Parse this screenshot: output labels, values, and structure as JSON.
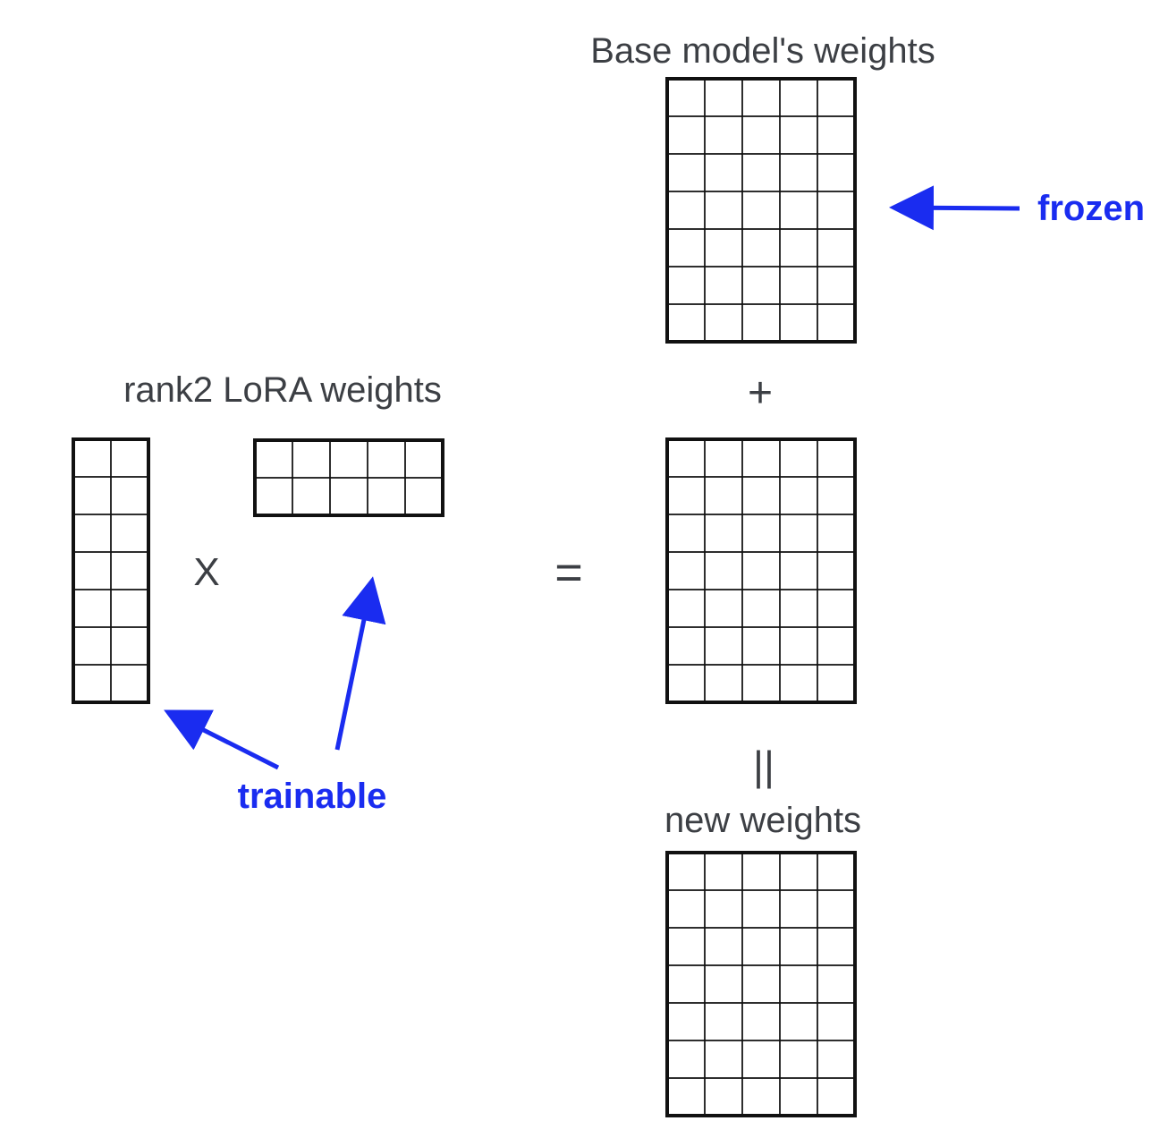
{
  "base_label": "Base model's weights",
  "lora_label": "rank2 LoRA weights",
  "new_label": "new weights",
  "frozen_label": "frozen",
  "trainable_label": "trainable",
  "plus_symbol": "+",
  "times_symbol": "X",
  "equals_symbol": "=",
  "parallel_symbol": "||",
  "accent_color": "#1a2cf0",
  "line_color": "#111111",
  "matrices": {
    "base": {
      "rows": 7,
      "cols": 5
    },
    "lora_a": {
      "rows": 7,
      "cols": 2
    },
    "lora_b": {
      "rows": 2,
      "cols": 5
    },
    "update": {
      "rows": 7,
      "cols": 5
    },
    "new": {
      "rows": 7,
      "cols": 5
    }
  }
}
